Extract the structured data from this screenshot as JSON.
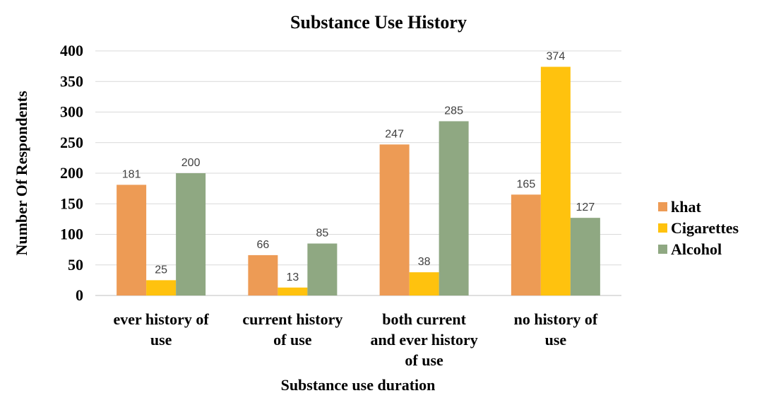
{
  "chart_data": {
    "type": "bar",
    "title": "Substance Use History",
    "xlabel": "Substance use duration",
    "ylabel": "Number Of Respondents",
    "categories": [
      [
        "ever history of",
        "use"
      ],
      [
        "current  history",
        "of use"
      ],
      [
        "both current",
        "and ever history",
        "of use"
      ],
      [
        "no history of",
        "use"
      ]
    ],
    "series": [
      {
        "name": "khat",
        "color": "#ED9B55",
        "values": [
          181,
          66,
          247,
          165
        ]
      },
      {
        "name": "Cigarettes",
        "color": "#FFC20E",
        "values": [
          25,
          13,
          38,
          374
        ]
      },
      {
        "name": "Alcohol",
        "color": "#8FA882",
        "values": [
          200,
          85,
          285,
          127
        ]
      }
    ],
    "ylim": [
      0,
      400
    ],
    "yticks": [
      0,
      50,
      100,
      150,
      200,
      250,
      300,
      350,
      400
    ],
    "grid": true,
    "legend_position": "right"
  }
}
